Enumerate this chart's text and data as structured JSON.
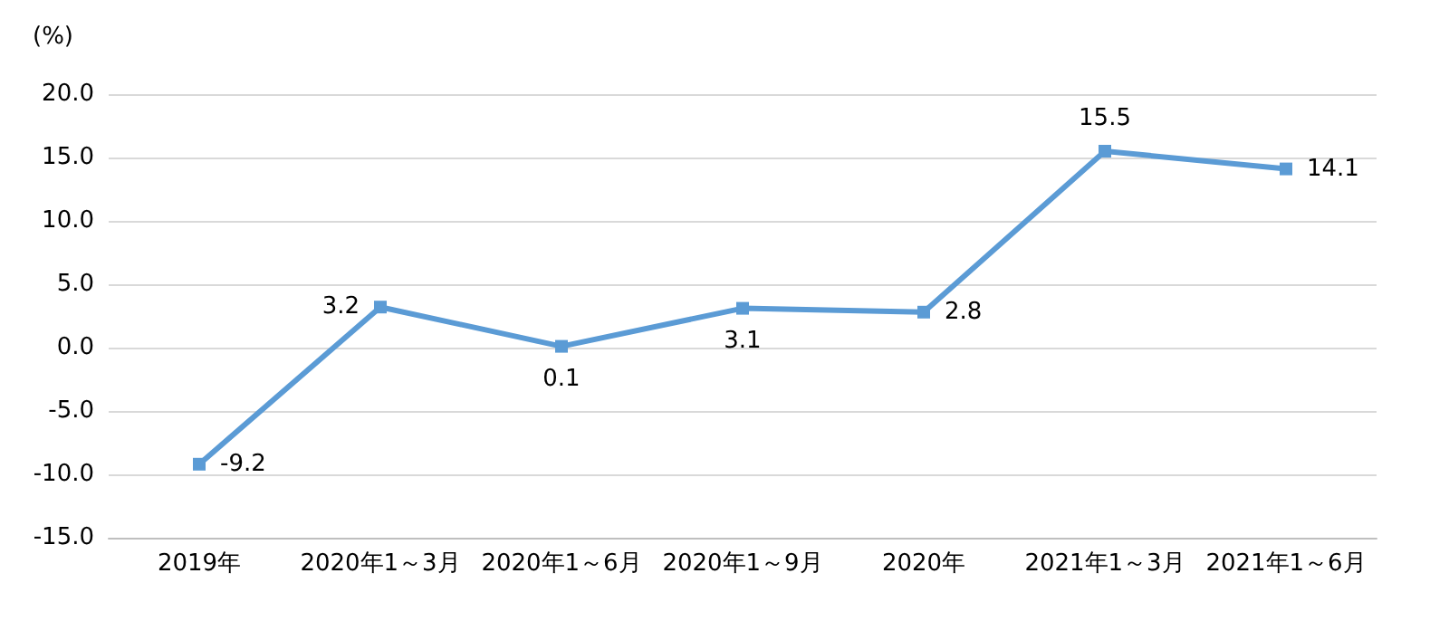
{
  "chart_data": {
    "type": "line",
    "ylabel": "(%)",
    "categories": [
      "2019年",
      "2020年1～3月",
      "2020年1～6月",
      "2020年1～9月",
      "2020年",
      "2021年1～3月",
      "2021年1～6月"
    ],
    "series": [
      {
        "color": "#5b9bd5",
        "values": [
          -9.2,
          3.2,
          0.1,
          3.1,
          2.8,
          15.5,
          14.1
        ]
      }
    ],
    "ylim": [
      -15,
      20
    ],
    "yticks": [
      {
        "value": -15,
        "label": "-15.0"
      },
      {
        "value": -10,
        "label": "-10.0"
      },
      {
        "value": -5,
        "label": "-5.0"
      },
      {
        "value": 0,
        "label": "0.0"
      },
      {
        "value": 5,
        "label": "5.0"
      },
      {
        "value": 10,
        "label": "10.0"
      },
      {
        "value": 15,
        "label": "15.0"
      },
      {
        "value": 20,
        "label": "20.0"
      }
    ],
    "grid": "y",
    "marker": "square",
    "line_style": "solid",
    "data_labels": true
  }
}
